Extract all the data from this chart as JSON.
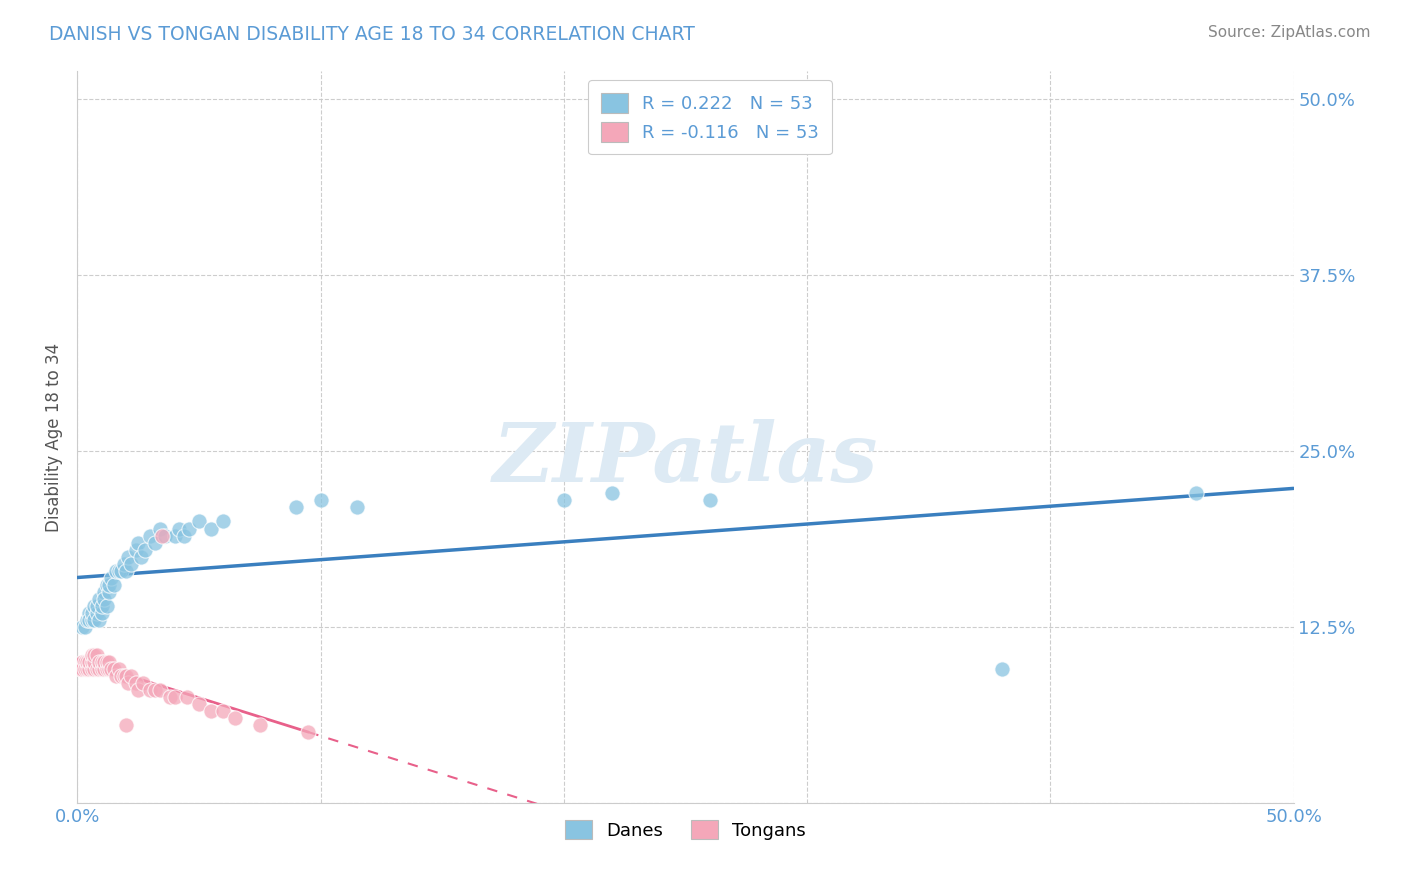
{
  "title": "DANISH VS TONGAN DISABILITY AGE 18 TO 34 CORRELATION CHART",
  "source": "Source: ZipAtlas.com",
  "ylabel_label": "Disability Age 18 to 34",
  "legend_danes": "Danes",
  "legend_tongans": "Tongans",
  "r_danes": 0.222,
  "r_tongans": -0.116,
  "n_danes": 53,
  "n_tongans": 53,
  "color_danes": "#89C4E1",
  "color_tongans": "#F4A7B9",
  "color_line_danes": "#3A7FBF",
  "color_line_tongans": "#E8608A",
  "watermark_color": "#DDEAF4",
  "danes_x": [
    0.002,
    0.003,
    0.004,
    0.005,
    0.005,
    0.006,
    0.006,
    0.007,
    0.007,
    0.008,
    0.008,
    0.009,
    0.009,
    0.01,
    0.01,
    0.011,
    0.011,
    0.012,
    0.012,
    0.013,
    0.013,
    0.014,
    0.015,
    0.016,
    0.017,
    0.018,
    0.019,
    0.02,
    0.021,
    0.022,
    0.024,
    0.025,
    0.026,
    0.028,
    0.03,
    0.032,
    0.034,
    0.036,
    0.04,
    0.042,
    0.044,
    0.046,
    0.05,
    0.055,
    0.06,
    0.09,
    0.1,
    0.115,
    0.2,
    0.22,
    0.26,
    0.38,
    0.46
  ],
  "danes_y": [
    0.125,
    0.125,
    0.13,
    0.135,
    0.13,
    0.13,
    0.135,
    0.13,
    0.14,
    0.135,
    0.14,
    0.13,
    0.145,
    0.135,
    0.14,
    0.15,
    0.145,
    0.14,
    0.155,
    0.15,
    0.155,
    0.16,
    0.155,
    0.165,
    0.165,
    0.165,
    0.17,
    0.165,
    0.175,
    0.17,
    0.18,
    0.185,
    0.175,
    0.18,
    0.19,
    0.185,
    0.195,
    0.19,
    0.19,
    0.195,
    0.19,
    0.195,
    0.2,
    0.195,
    0.2,
    0.21,
    0.215,
    0.21,
    0.215,
    0.22,
    0.215,
    0.095,
    0.22
  ],
  "tongans_x": [
    0.001,
    0.002,
    0.002,
    0.003,
    0.003,
    0.004,
    0.004,
    0.005,
    0.005,
    0.006,
    0.006,
    0.006,
    0.007,
    0.007,
    0.007,
    0.008,
    0.008,
    0.009,
    0.009,
    0.01,
    0.01,
    0.011,
    0.011,
    0.012,
    0.012,
    0.013,
    0.013,
    0.014,
    0.015,
    0.016,
    0.017,
    0.018,
    0.019,
    0.02,
    0.021,
    0.022,
    0.024,
    0.025,
    0.027,
    0.03,
    0.032,
    0.034,
    0.038,
    0.04,
    0.045,
    0.05,
    0.055,
    0.06,
    0.065,
    0.075,
    0.095,
    0.035,
    0.02
  ],
  "tongans_y": [
    0.095,
    0.1,
    0.095,
    0.1,
    0.095,
    0.095,
    0.1,
    0.095,
    0.1,
    0.095,
    0.1,
    0.105,
    0.095,
    0.1,
    0.105,
    0.095,
    0.105,
    0.095,
    0.1,
    0.095,
    0.1,
    0.095,
    0.1,
    0.095,
    0.1,
    0.095,
    0.1,
    0.095,
    0.095,
    0.09,
    0.095,
    0.09,
    0.09,
    0.09,
    0.085,
    0.09,
    0.085,
    0.08,
    0.085,
    0.08,
    0.08,
    0.08,
    0.075,
    0.075,
    0.075,
    0.07,
    0.065,
    0.065,
    0.06,
    0.055,
    0.05,
    0.19,
    0.055
  ],
  "xlim": [
    0.0,
    0.5
  ],
  "ylim": [
    0.0,
    0.52
  ],
  "xticks": [
    0.0,
    0.1,
    0.2,
    0.3,
    0.4,
    0.5
  ],
  "yticks": [
    0.0,
    0.125,
    0.25,
    0.375,
    0.5
  ],
  "background_color": "#FFFFFF",
  "grid_color": "#C8C8C8"
}
